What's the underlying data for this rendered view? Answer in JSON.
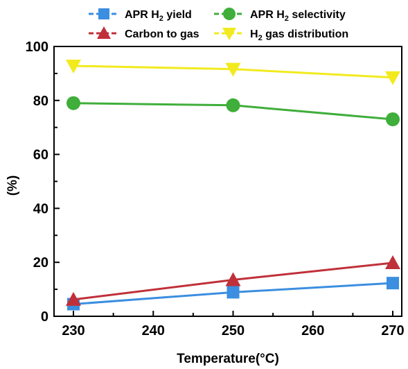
{
  "chart_data": {
    "type": "line",
    "xlabel": "Temperature(°C)",
    "ylabel": "(%)",
    "xlim": [
      230,
      270
    ],
    "ylim": [
      0,
      100
    ],
    "xticks": [
      230,
      240,
      250,
      260,
      270
    ],
    "yticks": [
      0,
      20,
      40,
      60,
      80,
      100
    ],
    "grid": false,
    "legend_position": "top",
    "x": [
      230,
      250,
      270
    ],
    "series": [
      {
        "name_prefix": "APR H",
        "name_sub": "2",
        "name_suffix": " yield",
        "marker": "square",
        "color": "#3b8ee0",
        "values": [
          4.5,
          8.9,
          12.3
        ]
      },
      {
        "name_prefix": "APR H",
        "name_sub": "2",
        "name_suffix": " selectivity",
        "marker": "circle",
        "color": "#3fae3a",
        "values": [
          79.0,
          78.2,
          73.0
        ]
      },
      {
        "name_prefix": "Carbon to gas",
        "name_sub": "",
        "name_suffix": "",
        "marker": "triangle-up",
        "color": "#c0303a",
        "values": [
          6.2,
          13.5,
          19.8
        ]
      },
      {
        "name_prefix": "H",
        "name_sub": "2",
        "name_suffix": " gas distribution",
        "marker": "triangle-down",
        "color": "#f2ea1e",
        "values": [
          92.8,
          91.6,
          88.5
        ]
      }
    ]
  }
}
